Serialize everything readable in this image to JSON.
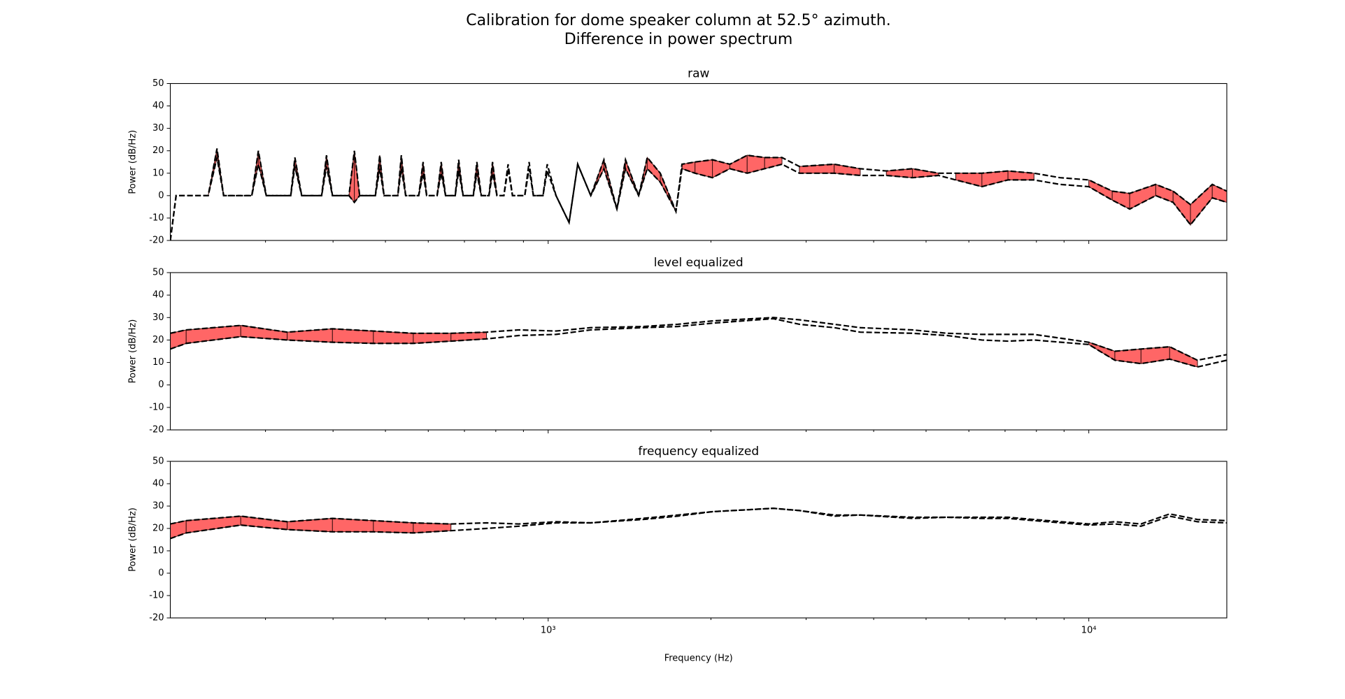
{
  "title_lines": [
    "Calibration for dome speaker column at 52.5° azimuth.",
    "Difference in power spectrum"
  ],
  "chart_data": [
    {
      "type": "line",
      "title": "raw",
      "ylabel": "Power (dB/Hz)",
      "xscale": "log",
      "xlim": [
        200,
        18000
      ],
      "ylim": [
        -20,
        50
      ],
      "yticks": [
        -20,
        -10,
        0,
        10,
        20,
        30,
        40,
        50
      ],
      "xticks": [
        {
          "value": 1000,
          "label": "10³"
        },
        {
          "value": 10000,
          "label": "10⁴"
        }
      ],
      "xminorticks": [
        300,
        400,
        500,
        600,
        700,
        800,
        900,
        2000,
        3000,
        4000,
        5000,
        6000,
        7000,
        8000,
        9000
      ],
      "show_xticklabels": false,
      "line_color": "#000000",
      "line_dash": true,
      "fill_color": "#ff6666",
      "fill_edge_color": "#3a1010",
      "fill_min_difference": 3,
      "x": [
        200,
        205,
        235,
        244,
        251,
        283,
        291,
        301,
        334,
        340,
        350,
        381,
        389,
        399,
        428,
        438,
        448,
        479,
        488,
        497,
        527,
        535,
        545,
        576,
        587,
        596,
        623,
        634,
        646,
        673,
        683,
        696,
        727,
        738,
        752,
        777,
        789,
        804,
        828,
        843,
        859,
        905,
        922,
        939,
        978,
        996,
        1034,
        1093,
        1134,
        1199,
        1268,
        1340,
        1390,
        1470,
        1525,
        1612,
        1723,
        1768,
        1869,
        2013,
        2168,
        2334,
        2514,
        2707,
        2915,
        3381,
        3778,
        4222,
        4717,
        5272,
        5675,
        6343,
        7088,
        7918,
        8848,
        10000,
        11050,
        11903,
        13300,
        14320,
        15420,
        16920,
        18000
      ],
      "series": [
        {
          "color": "#000000",
          "values": [
            -20,
            0,
            0,
            21,
            0,
            0,
            20,
            0,
            0,
            17,
            0,
            0,
            18,
            0,
            0,
            20,
            0,
            0,
            18,
            0,
            0,
            18,
            0,
            0,
            15,
            0,
            0,
            15,
            0,
            0,
            16,
            0,
            0,
            15,
            0,
            0,
            15,
            0,
            0,
            14,
            0,
            0,
            15,
            0,
            0,
            14,
            0,
            -12,
            14,
            0,
            16,
            -6,
            16,
            0,
            17,
            10,
            -7,
            14,
            15,
            16,
            14,
            18,
            17,
            17,
            13,
            14,
            12,
            11,
            12,
            10,
            10,
            10,
            11,
            10,
            8,
            7,
            2,
            1,
            5,
            2,
            -4,
            5,
            2
          ]
        },
        {
          "color": "#000000",
          "values": [
            -20,
            0,
            0,
            17,
            0,
            0,
            14,
            0,
            0,
            13,
            0,
            0,
            13,
            0,
            0,
            -3,
            0,
            0,
            12,
            0,
            0,
            12,
            0,
            0,
            10,
            0,
            0,
            10,
            0,
            0,
            11,
            0,
            0,
            10,
            0,
            0,
            10,
            0,
            0,
            12,
            0,
            0,
            12,
            0,
            0,
            11,
            0,
            -12,
            14,
            0,
            12,
            -6,
            12,
            0,
            12,
            6,
            -7,
            12,
            10,
            8,
            12,
            10,
            12,
            14,
            10,
            10,
            9,
            9,
            8,
            9,
            7,
            4,
            7,
            7,
            5,
            4,
            -2,
            -6,
            0,
            -3,
            -13,
            -1,
            -3
          ]
        }
      ]
    },
    {
      "type": "line",
      "title": "level equalized",
      "ylabel": "Power (dB/Hz)",
      "xscale": "log",
      "xlim": [
        200,
        18000
      ],
      "ylim": [
        -20,
        50
      ],
      "yticks": [
        -20,
        -10,
        0,
        10,
        20,
        30,
        40,
        50
      ],
      "xticks": [
        {
          "value": 1000,
          "label": "10³"
        },
        {
          "value": 10000,
          "label": "10⁴"
        }
      ],
      "xminorticks": [
        300,
        400,
        500,
        600,
        700,
        800,
        900,
        2000,
        3000,
        4000,
        5000,
        6000,
        7000,
        8000,
        9000
      ],
      "show_xticklabels": false,
      "line_color": "#000000",
      "line_dash": true,
      "fill_color": "#ff6666",
      "fill_edge_color": "#3a1010",
      "fill_min_difference": 3,
      "x": [
        200,
        214,
        270,
        329,
        399,
        475,
        563,
        661,
        769,
        882,
        1034,
        1199,
        1497,
        1736,
        2013,
        2609,
        2915,
        3381,
        3778,
        4717,
        5470,
        6343,
        7088,
        7918,
        10000,
        11173,
        12491,
        14112,
        15885,
        18000
      ],
      "series": [
        {
          "color": "#000000",
          "values": [
            23,
            24.5,
            26.5,
            23.5,
            25,
            24,
            23,
            23,
            23.5,
            24.5,
            24,
            25.5,
            26,
            27,
            28.5,
            30,
            29,
            27,
            25.5,
            24.5,
            23,
            22.5,
            22.5,
            22.5,
            19,
            15,
            16,
            17,
            11,
            13.5
          ]
        },
        {
          "color": "#000000",
          "values": [
            16,
            18.5,
            21.5,
            20,
            19,
            18.5,
            18.5,
            19.5,
            20.5,
            22,
            22.5,
            24.5,
            25.5,
            26,
            27.5,
            29.5,
            27,
            25.5,
            23.5,
            23,
            22,
            20,
            19.5,
            20,
            18,
            11,
            9.5,
            11.5,
            8,
            11
          ]
        }
      ]
    },
    {
      "type": "line",
      "title": "frequency equalized",
      "ylabel": "Power (dB/Hz)",
      "xlabel": "Frequency (Hz)",
      "xscale": "log",
      "xlim": [
        200,
        18000
      ],
      "ylim": [
        -20,
        50
      ],
      "yticks": [
        -20,
        -10,
        0,
        10,
        20,
        30,
        40,
        50
      ],
      "xticks": [
        {
          "value": 1000,
          "label": "10³"
        },
        {
          "value": 10000,
          "label": "10⁴"
        }
      ],
      "xminorticks": [
        300,
        400,
        500,
        600,
        700,
        800,
        900,
        2000,
        3000,
        4000,
        5000,
        6000,
        7000,
        8000,
        9000
      ],
      "show_xticklabels": true,
      "line_color": "#000000",
      "line_dash": true,
      "fill_color": "#ff6666",
      "fill_edge_color": "#3a1010",
      "fill_min_difference": 3,
      "x": [
        200,
        214,
        270,
        329,
        399,
        475,
        563,
        661,
        769,
        882,
        1034,
        1199,
        1497,
        1736,
        2013,
        2609,
        2915,
        3381,
        3778,
        4717,
        5470,
        6343,
        7088,
        7918,
        10000,
        11173,
        12491,
        14112,
        15885,
        18000
      ],
      "series": [
        {
          "color": "#000000",
          "values": [
            22,
            23.5,
            25.5,
            23,
            24.5,
            23.5,
            22.5,
            22,
            22.5,
            22,
            23,
            22.5,
            24.5,
            26,
            27.5,
            29,
            28,
            26,
            26,
            25,
            25,
            25,
            25,
            24,
            22,
            23,
            22,
            26.5,
            24,
            23.5
          ]
        },
        {
          "color": "#000000",
          "values": [
            15.5,
            18,
            21.5,
            19.5,
            18.5,
            18.5,
            18,
            19,
            20,
            21,
            22.5,
            22.5,
            24,
            25.5,
            27.5,
            29,
            28,
            25.5,
            26,
            24.5,
            25,
            24.5,
            24.5,
            23.5,
            21.5,
            22,
            21,
            25.5,
            23,
            22.5
          ]
        }
      ]
    }
  ]
}
